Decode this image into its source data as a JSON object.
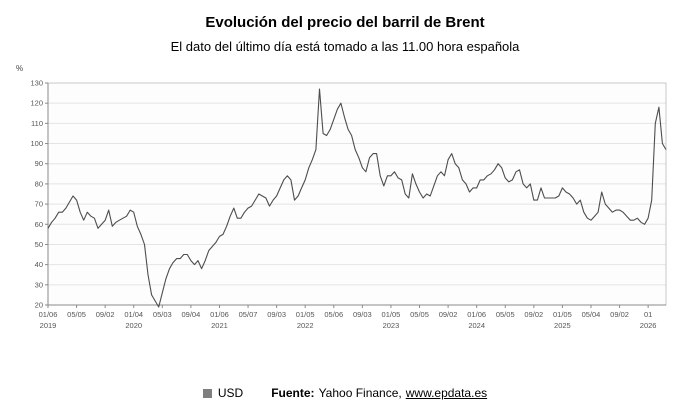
{
  "header": {
    "title": "Evolución del precio del barril de Brent",
    "subtitle": "El dato del último día está tomado a las 11.00 hora española"
  },
  "chart_data": {
    "type": "line",
    "title": "Evolución del precio del barril de Brent",
    "unit_label": "%",
    "ylim": [
      20,
      130
    ],
    "y_ticks": [
      20,
      30,
      40,
      50,
      60,
      70,
      80,
      90,
      100,
      110,
      120,
      130
    ],
    "grid": true,
    "tick_every": 8,
    "x_ticks": [
      {
        "label": "01/06",
        "year": "2019"
      },
      {
        "label": "05/05",
        "year": ""
      },
      {
        "label": "09/02",
        "year": ""
      },
      {
        "label": "01/04",
        "year": "2020"
      },
      {
        "label": "05/03",
        "year": ""
      },
      {
        "label": "09/04",
        "year": ""
      },
      {
        "label": "01/06",
        "year": "2021"
      },
      {
        "label": "05/07",
        "year": ""
      },
      {
        "label": "09/03",
        "year": ""
      },
      {
        "label": "01/05",
        "year": "2022"
      },
      {
        "label": "05/06",
        "year": ""
      },
      {
        "label": "09/03",
        "year": ""
      },
      {
        "label": "01/05",
        "year": "2023"
      },
      {
        "label": "05/05",
        "year": ""
      },
      {
        "label": "09/02",
        "year": ""
      },
      {
        "label": "01/06",
        "year": "2024"
      },
      {
        "label": "05/05",
        "year": ""
      },
      {
        "label": "09/02",
        "year": ""
      },
      {
        "label": "01/05",
        "year": "2025"
      },
      {
        "label": "05/04",
        "year": ""
      },
      {
        "label": "09/02",
        "year": ""
      },
      {
        "label": "01",
        "year": "2026"
      }
    ],
    "x_note": "semi-monthly samples, Jan 2019 to early 2026",
    "series": [
      {
        "name": "USD",
        "color": "#4d4d4d",
        "values": [
          58,
          61,
          63,
          66,
          66,
          68,
          71,
          74,
          72,
          66,
          62,
          66,
          64,
          63,
          58,
          60,
          62,
          67,
          59,
          61,
          62,
          63,
          64,
          67,
          66,
          59,
          55,
          50,
          35,
          25,
          22,
          19,
          26,
          33,
          38,
          41,
          43,
          43,
          45,
          45,
          42,
          40,
          42,
          38,
          42,
          47,
          49,
          51,
          54,
          55,
          59,
          64,
          68,
          63,
          63,
          66,
          68,
          69,
          72,
          75,
          74,
          73,
          69,
          72,
          74,
          78,
          82,
          84,
          82,
          72,
          74,
          78,
          82,
          88,
          92,
          97,
          127,
          105,
          104,
          107,
          112,
          117,
          120,
          113,
          107,
          104,
          97,
          93,
          88,
          86,
          93,
          95,
          95,
          84,
          79,
          84,
          84,
          86,
          83,
          82,
          75,
          73,
          85,
          80,
          76,
          73,
          75,
          74,
          79,
          84,
          86,
          84,
          92,
          95,
          90,
          88,
          82,
          80,
          76,
          78,
          78,
          82,
          82,
          84,
          85,
          87,
          90,
          88,
          83,
          81,
          82,
          86,
          87,
          80,
          78,
          80,
          72,
          72,
          78,
          73,
          73,
          73,
          73,
          74,
          78,
          76,
          75,
          73,
          70,
          72,
          66,
          63,
          62,
          64,
          66,
          76,
          70,
          68,
          66,
          67,
          67,
          66,
          64,
          62,
          62,
          63,
          61,
          60,
          63,
          72,
          110,
          118,
          100,
          97
        ]
      }
    ]
  },
  "legend": {
    "items": [
      {
        "label": "USD",
        "color": "#7f7f7f"
      }
    ]
  },
  "footer": {
    "source_label": "Fuente:",
    "source_text": "Yahoo Finance,",
    "source_link": "www.epdata.es"
  }
}
